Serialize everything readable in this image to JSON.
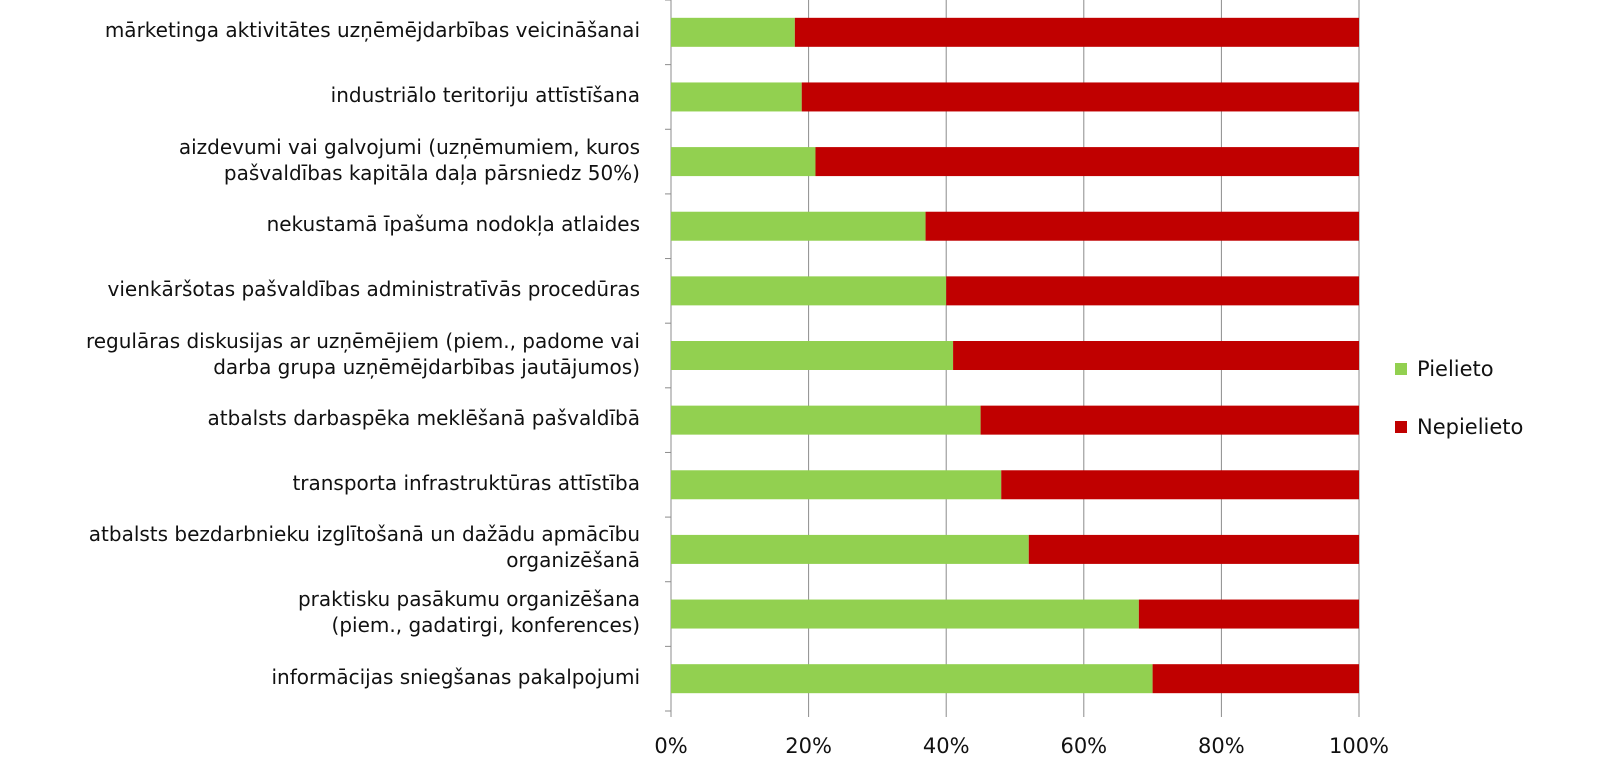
{
  "chart_data": {
    "type": "bar",
    "orientation": "horizontal",
    "stacked": true,
    "percent_stacked": true,
    "categories": [
      "mārketinga aktivitātes uzņēmējdarbības veicināšanai",
      "industriālo teritoriju attīstīšana",
      "aizdevumi vai galvojumi (uzņēmumiem, kuros\npašvaldības kapitāla daļa pārsniedz 50%)",
      "nekustamā īpašuma nodokļa atlaides",
      "vienkāršotas pašvaldības administratīvās procedūras",
      "regulāras diskusijas ar uzņēmējiem (piem., padome vai\ndarba grupa uzņēmējdarbības jautājumos)",
      "atbalsts darbaspēka meklēšanā pašvaldībā",
      "transporta infrastruktūras attīstība",
      "atbalsts bezdarbnieku izglītošanā un dažādu apmācību\norganizēšanā",
      "praktisku pasākumu organizēšana\n(piem., gadatirgi, konferences)",
      "informācijas sniegšanas pakalpojumi"
    ],
    "series": [
      {
        "name": "Pielieto",
        "color": "#92D050",
        "values": [
          18,
          19,
          21,
          37,
          40,
          41,
          45,
          48,
          52,
          68,
          70
        ]
      },
      {
        "name": "Nepielieto",
        "color": "#C00000",
        "values": [
          82,
          81,
          79,
          63,
          60,
          59,
          55,
          52,
          48,
          32,
          30
        ]
      }
    ],
    "x_ticks": [
      "0%",
      "20%",
      "40%",
      "60%",
      "80%",
      "100%"
    ],
    "xlim": [
      0,
      100
    ],
    "grid": true,
    "legend_position": "right",
    "title": "",
    "xlabel": "",
    "ylabel": ""
  }
}
